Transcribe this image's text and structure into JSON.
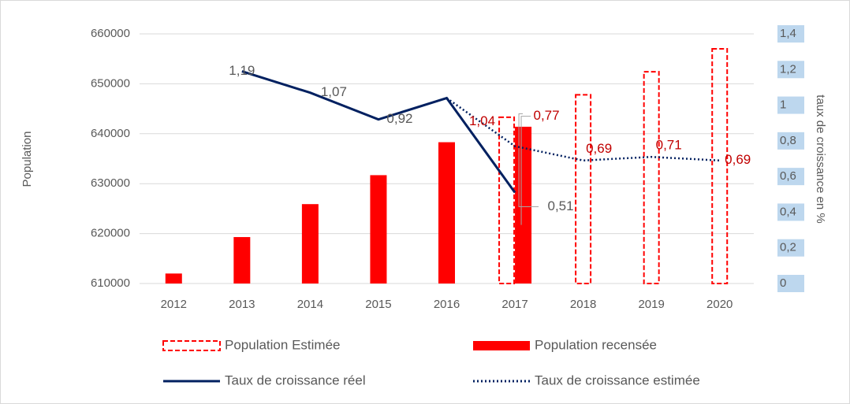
{
  "chart_data": {
    "type": "bar-line",
    "categories": [
      "2012",
      "2013",
      "2014",
      "2015",
      "2016",
      "2017",
      "2018",
      "2019",
      "2020"
    ],
    "ylabel": "Population",
    "y2label": "taux de croissance en %",
    "ylim": [
      610000,
      660000
    ],
    "yticks": [
      610000,
      620000,
      630000,
      640000,
      650000,
      660000
    ],
    "y2lim": [
      0,
      1.4
    ],
    "y2ticks": [
      0,
      {
        "value": 0.2,
        "label": "0,2"
      },
      {
        "value": 0.4,
        "label": "0,4"
      },
      {
        "value": 0.6,
        "label": "0,6"
      },
      {
        "value": 0.8,
        "label": "0,8"
      },
      1,
      {
        "value": 1.2,
        "label": "1,2"
      },
      {
        "value": 1.4,
        "label": "1,4"
      }
    ],
    "grid": true,
    "legend": "bottom",
    "series": [
      {
        "name": "Population Estimée",
        "kind": "bar",
        "style": "dashed",
        "color": "#ff0000",
        "values": [
          null,
          null,
          null,
          null,
          null,
          643300,
          647800,
          652400,
          657000
        ]
      },
      {
        "name": "Population recensée",
        "kind": "bar",
        "style": "solid",
        "color": "#ff0000",
        "values": [
          612000,
          619300,
          625900,
          631700,
          638300,
          641400,
          null,
          null,
          null
        ]
      },
      {
        "name": "Taux de croissance réel",
        "kind": "line",
        "style": "solid",
        "color": "#002060",
        "axis": "y2",
        "label_color": "#595959",
        "values": [
          null,
          1.19,
          1.07,
          0.92,
          1.04,
          0.51,
          null,
          null,
          null
        ],
        "value_labels": [
          null,
          "1,19",
          "1,07",
          "0,92",
          null,
          "0,51",
          null,
          null,
          null
        ]
      },
      {
        "name": "Taux de croissance estimée",
        "kind": "line",
        "style": "dotted",
        "color": "#002060",
        "axis": "y2",
        "label_color": "#c00000",
        "values": [
          null,
          null,
          null,
          null,
          1.04,
          0.77,
          0.69,
          0.71,
          0.69
        ],
        "value_labels": [
          null,
          null,
          null,
          null,
          "1,04",
          "0,77",
          "0,69",
          "0,71",
          "0,69"
        ]
      }
    ]
  }
}
